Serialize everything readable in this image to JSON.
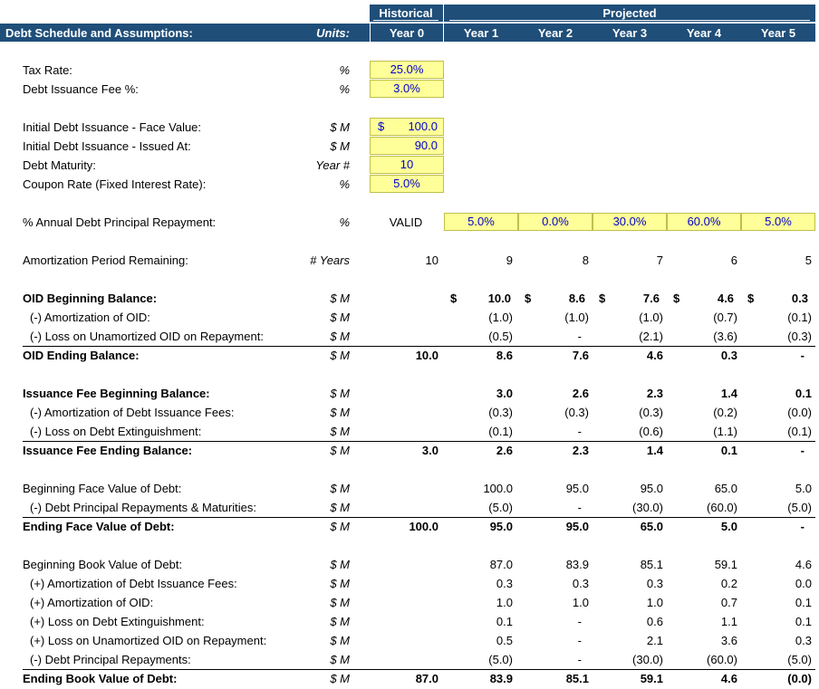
{
  "header": {
    "historical": "Historical",
    "projected": "Projected",
    "title": "Debt Schedule and Assumptions:",
    "units": "Units:",
    "years": [
      "Year 0",
      "Year 1",
      "Year 2",
      "Year 3",
      "Year 4",
      "Year 5"
    ]
  },
  "assumptions": {
    "tax_rate": {
      "label": "Tax Rate:",
      "unit": "%",
      "value": "25.0%"
    },
    "fee_pct": {
      "label": "Debt Issuance Fee %:",
      "unit": "%",
      "value": "3.0%"
    },
    "face_value": {
      "label": "Initial Debt Issuance - Face Value:",
      "unit": "$ M",
      "currency": "$",
      "value": "100.0"
    },
    "issued_at": {
      "label": "Initial Debt Issuance - Issued At:",
      "unit": "$ M",
      "value": "90.0"
    },
    "maturity": {
      "label": "Debt Maturity:",
      "unit": "Year #",
      "value": "10"
    },
    "coupon": {
      "label": "Coupon Rate (Fixed Interest Rate):",
      "unit": "%",
      "value": "5.0%"
    }
  },
  "repayment": {
    "label": "% Annual Debt Principal Repayment:",
    "unit": "%",
    "status": "VALID",
    "values": [
      "5.0%",
      "0.0%",
      "30.0%",
      "60.0%",
      "5.0%"
    ]
  },
  "amort_period": {
    "label": "Amortization Period Remaining:",
    "unit": "# Years",
    "values": [
      "10",
      "9",
      "8",
      "7",
      "6",
      "5"
    ]
  },
  "oid": {
    "begin": {
      "label": "OID Beginning Balance:",
      "unit": "$ M",
      "currency": "$",
      "values": [
        "",
        "10.0",
        "8.6",
        "7.6",
        "4.6",
        "0.3"
      ]
    },
    "amort": {
      "label": "(-) Amortization of OID:",
      "unit": "$ M",
      "values": [
        "",
        "(1.0)",
        "(1.0)",
        "(1.0)",
        "(0.7)",
        "(0.1)"
      ]
    },
    "loss": {
      "label": "(-) Loss on Unamortized OID on Repayment:",
      "unit": "$ M",
      "values": [
        "",
        "(0.5)",
        "-",
        "(2.1)",
        "(3.6)",
        "(0.3)"
      ]
    },
    "end": {
      "label": "OID Ending Balance:",
      "unit": "$ M",
      "values": [
        "10.0",
        "8.6",
        "7.6",
        "4.6",
        "0.3",
        "-"
      ]
    }
  },
  "fee": {
    "begin": {
      "label": "Issuance Fee Beginning Balance:",
      "unit": "$ M",
      "values": [
        "",
        "3.0",
        "2.6",
        "2.3",
        "1.4",
        "0.1"
      ]
    },
    "amort": {
      "label": "(-) Amortization of Debt Issuance Fees:",
      "unit": "$ M",
      "values": [
        "",
        "(0.3)",
        "(0.3)",
        "(0.3)",
        "(0.2)",
        "(0.0)"
      ]
    },
    "loss": {
      "label": "(-) Loss on Debt Extinguishment:",
      "unit": "$ M",
      "values": [
        "",
        "(0.1)",
        "-",
        "(0.6)",
        "(1.1)",
        "(0.1)"
      ]
    },
    "end": {
      "label": "Issuance Fee Ending Balance:",
      "unit": "$ M",
      "values": [
        "3.0",
        "2.6",
        "2.3",
        "1.4",
        "0.1",
        "-"
      ]
    }
  },
  "face": {
    "begin": {
      "label": "Beginning Face Value of Debt:",
      "unit": "$ M",
      "values": [
        "",
        "100.0",
        "95.0",
        "95.0",
        "65.0",
        "5.0"
      ]
    },
    "repay": {
      "label": "(-) Debt Principal Repayments & Maturities:",
      "unit": "$ M",
      "values": [
        "",
        "(5.0)",
        "-",
        "(30.0)",
        "(60.0)",
        "(5.0)"
      ]
    },
    "end": {
      "label": "Ending Face Value of Debt:",
      "unit": "$ M",
      "values": [
        "100.0",
        "95.0",
        "95.0",
        "65.0",
        "5.0",
        "-"
      ]
    }
  },
  "book": {
    "begin": {
      "label": "Beginning Book Value of Debt:",
      "unit": "$ M",
      "values": [
        "",
        "87.0",
        "83.9",
        "85.1",
        "59.1",
        "4.6"
      ]
    },
    "fee_amort": {
      "label": "(+) Amortization of Debt Issuance Fees:",
      "unit": "$ M",
      "values": [
        "",
        "0.3",
        "0.3",
        "0.3",
        "0.2",
        "0.0"
      ]
    },
    "oid_amort": {
      "label": "(+) Amortization of OID:",
      "unit": "$ M",
      "values": [
        "",
        "1.0",
        "1.0",
        "1.0",
        "0.7",
        "0.1"
      ]
    },
    "loss_ext": {
      "label": "(+) Loss on Debt Extinguishment:",
      "unit": "$ M",
      "values": [
        "",
        "0.1",
        "-",
        "0.6",
        "1.1",
        "0.1"
      ]
    },
    "loss_oid": {
      "label": "(+) Loss on Unamortized OID on Repayment:",
      "unit": "$ M",
      "values": [
        "",
        "0.5",
        "-",
        "2.1",
        "3.6",
        "0.3"
      ]
    },
    "repay": {
      "label": "(-) Debt Principal Repayments:",
      "unit": "$ M",
      "values": [
        "",
        "(5.0)",
        "-",
        "(30.0)",
        "(60.0)",
        "(5.0)"
      ]
    },
    "end": {
      "label": "Ending Book Value of Debt:",
      "unit": "$ M",
      "values": [
        "87.0",
        "83.9",
        "85.1",
        "59.1",
        "4.6",
        "(0.0)"
      ]
    }
  },
  "colors": {
    "header_bg": "#1F4E79",
    "input_bg": "#FFFF99",
    "input_text": "#0000CC"
  }
}
